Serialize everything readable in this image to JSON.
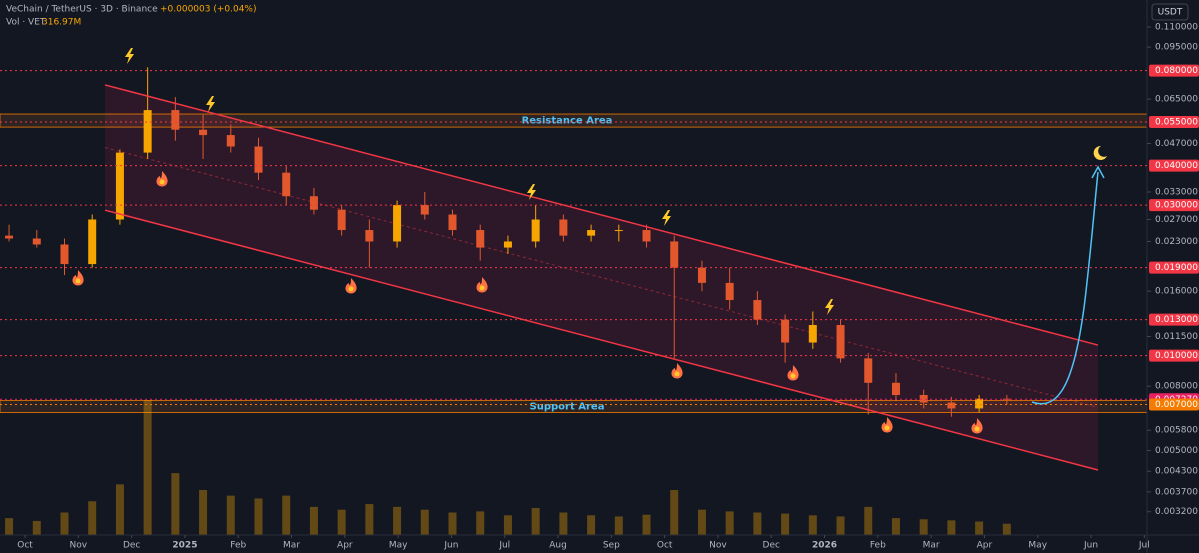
{
  "chart_data": {
    "type": "candlestick",
    "title": "VeChain / TetherUS · 3D · Binance",
    "change": "+0.000003 (+0.04%)",
    "volume_label": "Vol · VET",
    "volume_value": "316.97M",
    "currency": "USDT",
    "log_scale": true,
    "up_color": "#f7a600",
    "down_color": "#e2582c",
    "volume_color": "#f7a600",
    "ylim": [
      0.0027,
      0.134
    ],
    "xlim": [
      -0.47,
      21.05
    ],
    "yticks": [
      {
        "value": 0.11,
        "label": "0.110000"
      },
      {
        "value": 0.095,
        "label": "0.095000"
      },
      {
        "value": 0.065,
        "label": "0.065000"
      },
      {
        "value": 0.047,
        "label": "0.047000"
      },
      {
        "value": 0.033,
        "label": "0.033000"
      },
      {
        "value": 0.027,
        "label": "0.027000"
      },
      {
        "value": 0.023,
        "label": "0.023000"
      },
      {
        "value": 0.016,
        "label": "0.016000"
      },
      {
        "value": 0.0115,
        "label": "0.011500"
      },
      {
        "value": 0.008,
        "label": "0.008000"
      },
      {
        "value": 0.0058,
        "label": "0.005800"
      },
      {
        "value": 0.005,
        "label": "0.005000"
      },
      {
        "value": 0.0043,
        "label": "0.004300"
      },
      {
        "value": 0.0037,
        "label": "0.003700"
      },
      {
        "value": 0.0032,
        "label": "0.003200"
      }
    ],
    "xticks": [
      {
        "value": 0,
        "label": "Oct"
      },
      {
        "value": 1,
        "label": "Nov"
      },
      {
        "value": 2,
        "label": "Dec"
      },
      {
        "value": 3,
        "label": "2025"
      },
      {
        "value": 4,
        "label": "Feb"
      },
      {
        "value": 5,
        "label": "Mar"
      },
      {
        "value": 6,
        "label": "Apr"
      },
      {
        "value": 7,
        "label": "May"
      },
      {
        "value": 8,
        "label": "Jun"
      },
      {
        "value": 9,
        "label": "Jul"
      },
      {
        "value": 10,
        "label": "Aug"
      },
      {
        "value": 11,
        "label": "Sep"
      },
      {
        "value": 12,
        "label": "Oct"
      },
      {
        "value": 13,
        "label": "Nov"
      },
      {
        "value": 14,
        "label": "Dec"
      },
      {
        "value": 15,
        "label": "2026"
      },
      {
        "value": 16,
        "label": "Feb"
      },
      {
        "value": 17,
        "label": "Mar"
      },
      {
        "value": 18,
        "label": "Apr"
      },
      {
        "value": 19,
        "label": "May"
      },
      {
        "value": 20,
        "label": "Jun"
      },
      {
        "value": 21,
        "label": "Jul"
      }
    ],
    "levels": [
      {
        "value": 0.08,
        "label": "0.080000",
        "color": "#f23645"
      },
      {
        "value": 0.055,
        "label": "0.055000",
        "color": "#f23645"
      },
      {
        "value": 0.04,
        "label": "0.040000",
        "color": "#f23645"
      },
      {
        "value": 0.03,
        "label": "0.030000",
        "color": "#f23645"
      },
      {
        "value": 0.019,
        "label": "0.019000",
        "color": "#f23645"
      },
      {
        "value": 0.013,
        "label": "0.013000",
        "color": "#f23645"
      },
      {
        "value": 0.01,
        "label": "0.010000",
        "color": "#f23645"
      },
      {
        "value": 0.00727,
        "label": "0.007270",
        "color": "#e91e63"
      },
      {
        "value": 0.007,
        "label": "0.007000",
        "color": "#f57c00"
      }
    ],
    "zones": [
      {
        "label": "Resistance Area",
        "range": [
          0.053,
          0.0583
        ]
      },
      {
        "label": "Support Area",
        "range": [
          0.0066,
          0.0072
        ]
      }
    ],
    "channel": {
      "upper": [
        [
          1.5,
          0.0721
        ],
        [
          20.13,
          0.0108
        ]
      ],
      "lower": [
        [
          1.5,
          0.0289
        ],
        [
          20.13,
          0.00434
        ]
      ]
    },
    "x": [
      -0.3,
      0.22,
      0.74,
      1.26,
      1.78,
      2.3,
      2.82,
      3.34,
      3.86,
      4.38,
      4.9,
      5.42,
      5.94,
      6.46,
      6.98,
      7.5,
      8.02,
      8.54,
      9.06,
      9.58,
      10.1,
      10.62,
      11.14,
      11.66,
      12.18,
      12.7,
      13.22,
      13.74,
      14.26,
      14.78,
      15.3,
      15.82,
      16.34,
      16.86,
      17.38,
      17.9,
      18.42
    ],
    "open": [
      0.024,
      0.0235,
      0.0225,
      0.0195,
      0.027,
      0.044,
      0.06,
      0.052,
      0.05,
      0.046,
      0.038,
      0.032,
      0.029,
      0.025,
      0.023,
      0.03,
      0.028,
      0.025,
      0.022,
      0.023,
      0.027,
      0.024,
      0.025,
      0.025,
      0.023,
      0.019,
      0.017,
      0.015,
      0.013,
      0.011,
      0.0125,
      0.0098,
      0.0082,
      0.0075,
      0.0071,
      0.0068,
      0.0073
    ],
    "high": [
      0.026,
      0.025,
      0.0235,
      0.028,
      0.045,
      0.082,
      0.066,
      0.058,
      0.054,
      0.049,
      0.04,
      0.034,
      0.03,
      0.027,
      0.031,
      0.033,
      0.029,
      0.026,
      0.024,
      0.03,
      0.028,
      0.026,
      0.026,
      0.026,
      0.024,
      0.02,
      0.019,
      0.016,
      0.0135,
      0.0138,
      0.013,
      0.0102,
      0.0088,
      0.0078,
      0.0074,
      0.0075,
      0.0075
    ],
    "low": [
      0.023,
      0.022,
      0.018,
      0.019,
      0.026,
      0.042,
      0.048,
      0.042,
      0.044,
      0.036,
      0.03,
      0.028,
      0.024,
      0.019,
      0.022,
      0.027,
      0.024,
      0.02,
      0.021,
      0.022,
      0.023,
      0.023,
      0.023,
      0.022,
      0.0098,
      0.016,
      0.014,
      0.0125,
      0.0095,
      0.0105,
      0.0095,
      0.0065,
      0.0072,
      0.0068,
      0.0064,
      0.0066,
      0.007
    ],
    "close": [
      0.0235,
      0.0225,
      0.0195,
      0.027,
      0.044,
      0.06,
      0.052,
      0.05,
      0.046,
      0.038,
      0.032,
      0.029,
      0.025,
      0.023,
      0.03,
      0.028,
      0.025,
      0.022,
      0.023,
      0.027,
      0.024,
      0.025,
      0.025,
      0.023,
      0.019,
      0.017,
      0.015,
      0.013,
      0.011,
      0.0125,
      0.0098,
      0.0082,
      0.0075,
      0.0071,
      0.0068,
      0.0073,
      0.00727
    ],
    "volume": [
      300,
      250,
      400,
      600,
      900,
      2400,
      1100,
      800,
      700,
      650,
      700,
      500,
      450,
      550,
      500,
      450,
      400,
      420,
      350,
      480,
      400,
      350,
      330,
      360,
      800,
      450,
      420,
      400,
      380,
      350,
      330,
      500,
      300,
      280,
      260,
      240,
      200
    ]
  }
}
